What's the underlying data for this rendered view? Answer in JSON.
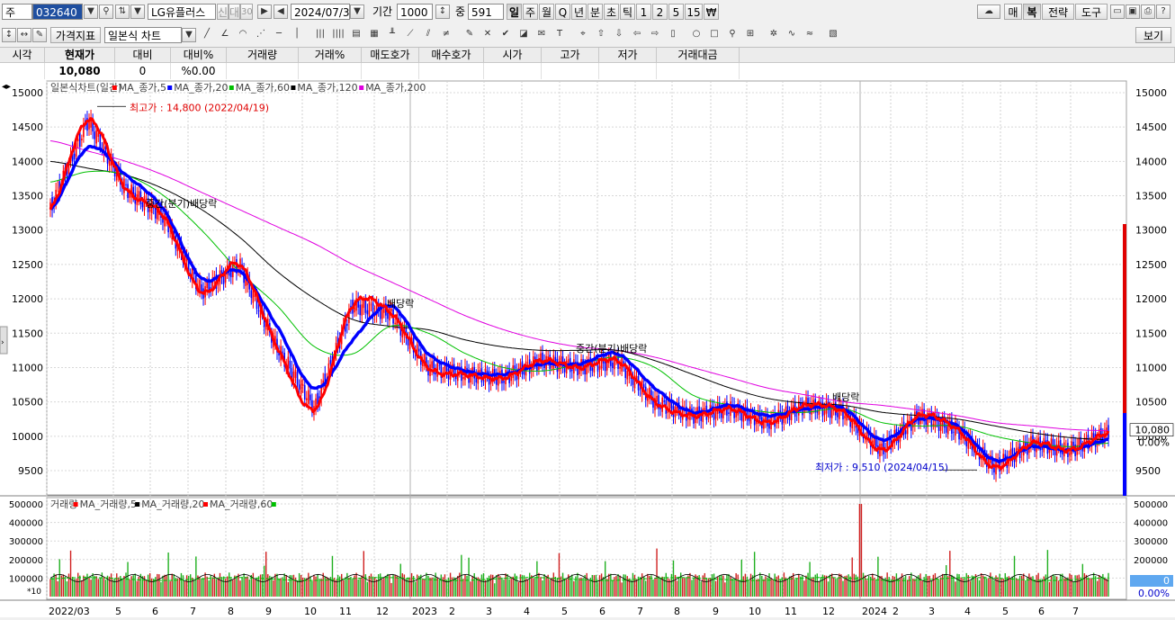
{
  "toolbar": {
    "market_label": "주",
    "code": "032640",
    "name": "LG유플러스",
    "credit_label": "신",
    "margin_label": "대",
    "rate_label": "30",
    "date": "2024/07/31",
    "period_label": "기간",
    "period_value": "1000",
    "count_label": "중",
    "count_value": "591",
    "intervals": [
      "일",
      "주",
      "월",
      "Q",
      "년",
      "분",
      "초",
      "틱",
      "1",
      "2",
      "5",
      "15",
      "₩"
    ],
    "active_interval": "일",
    "right_buttons": [
      "매",
      "복",
      "전략",
      "도구"
    ],
    "price_indicator": "가격지표",
    "chart_type": "일본식 차트",
    "view_button": "보기"
  },
  "quote": {
    "headers": [
      "시각",
      "현재가",
      "대비",
      "대비%",
      "거래량",
      "거래%",
      "매도호가",
      "매수호가",
      "시가",
      "고가",
      "저가",
      "거래대금"
    ],
    "values": [
      "",
      "10,080",
      "0",
      "%0.00",
      "",
      "",
      "",
      "",
      "",
      "",
      "",
      ""
    ]
  },
  "chart": {
    "price_legend": [
      "일본식차트(일간)",
      "MA_종가,5",
      "MA_종가,20",
      "MA_종가,60",
      "MA_종가,120",
      "MA_종가,200"
    ],
    "volume_legend": [
      "거래량",
      "MA_거래량,5",
      "MA_거래량,20",
      "MA_거래량,60"
    ],
    "price_ticks": [
      "15000",
      "14500",
      "14000",
      "13500",
      "13000",
      "12500",
      "12000",
      "11500",
      "11000",
      "10500",
      "10000",
      "9500"
    ],
    "volume_ticks": [
      "500000",
      "400000",
      "300000",
      "200000",
      "100000"
    ],
    "volume_unit": "*10",
    "x_labels": [
      "2022/03",
      "5",
      "6",
      "7",
      "8",
      "9",
      "10",
      "11",
      "12",
      "2023",
      "2",
      "3",
      "4",
      "5",
      "6",
      "7",
      "8",
      "9",
      "10",
      "11",
      "12",
      "2024",
      "2",
      "3",
      "4",
      "5",
      "6",
      "7"
    ],
    "high_annotation": "최고가 : 14,800 (2022/04/19)",
    "low_annotation": "최저가 : 9,510 (2024/04/15)",
    "events": [
      "중간(분기)배당락",
      "배당락",
      "중간(분기)배당락",
      "배당락"
    ],
    "current_price_tag": "10,080",
    "current_change_tag": "0.00%",
    "volume_current_tag": "0",
    "volume_change_tag": "0.00%",
    "colors": {
      "ma5": "#ff0000",
      "ma20": "#0000ff",
      "ma60": "#00c000",
      "ma120": "#000000",
      "ma200": "#e000e0",
      "up": "#ff0000",
      "down": "#0000ff"
    }
  },
  "chart_data": {
    "type": "line",
    "title": "LG유플러스 일본식차트(일간)",
    "x": [
      "2022/03",
      "2022/04",
      "2022/05",
      "2022/06",
      "2022/07",
      "2022/08",
      "2022/09",
      "2022/10",
      "2022/11",
      "2022/12",
      "2023/01",
      "2023/02",
      "2023/03",
      "2023/04",
      "2023/05",
      "2023/06",
      "2023/07",
      "2023/08",
      "2023/09",
      "2023/10",
      "2023/11",
      "2023/12",
      "2024/01",
      "2024/02",
      "2024/03",
      "2024/04",
      "2024/05",
      "2024/06",
      "2024/07"
    ],
    "series": [
      {
        "name": "MA_종가,5",
        "values": [
          13300,
          14600,
          13600,
          13200,
          12100,
          12500,
          11300,
          10400,
          11900,
          11800,
          11000,
          10900,
          10850,
          11100,
          11000,
          11100,
          10500,
          10300,
          10400,
          10200,
          10450,
          10350,
          9800,
          10300,
          10100,
          9550,
          9900,
          9800,
          10050
        ]
      },
      {
        "name": "MA_종가,20",
        "values": [
          13300,
          14200,
          13800,
          13300,
          12300,
          12400,
          11600,
          10700,
          11400,
          11900,
          11200,
          10950,
          10900,
          11050,
          11050,
          11200,
          10700,
          10350,
          10450,
          10300,
          10400,
          10400,
          9950,
          10250,
          10150,
          9650,
          9850,
          9800,
          9950
        ]
      },
      {
        "name": "MA_종가,60",
        "values": [
          13700,
          13850,
          13800,
          13500,
          13000,
          12400,
          11900,
          11300,
          11200,
          11600,
          11500,
          11200,
          11000,
          10950,
          11050,
          11150,
          11000,
          10600,
          10450,
          10350,
          10350,
          10400,
          10200,
          10150,
          10150,
          10000,
          9900,
          9850,
          9900
        ]
      },
      {
        "name": "MA_종가,120",
        "values": [
          14000,
          13900,
          13800,
          13600,
          13300,
          12900,
          12400,
          12000,
          11700,
          11600,
          11550,
          11400,
          11300,
          11250,
          11250,
          11250,
          11100,
          10900,
          10700,
          10550,
          10480,
          10450,
          10350,
          10300,
          10250,
          10150,
          10050,
          9980,
          9950
        ]
      },
      {
        "name": "MA_종가,200",
        "values": [
          14300,
          14150,
          14000,
          13800,
          13550,
          13300,
          13050,
          12800,
          12500,
          12250,
          12000,
          11750,
          11550,
          11400,
          11300,
          11250,
          11150,
          11000,
          10850,
          10700,
          10600,
          10500,
          10450,
          10380,
          10300,
          10200,
          10150,
          10100,
          10080
        ]
      }
    ],
    "ylim": [
      9200,
      15100
    ],
    "high": {
      "value": 14800,
      "date": "2022/04/19"
    },
    "low": {
      "value": 9510,
      "date": "2024/04/15"
    },
    "current": 10080,
    "volume_ylim": [
      0,
      520000
    ],
    "grid": true,
    "legend": "top-left"
  }
}
